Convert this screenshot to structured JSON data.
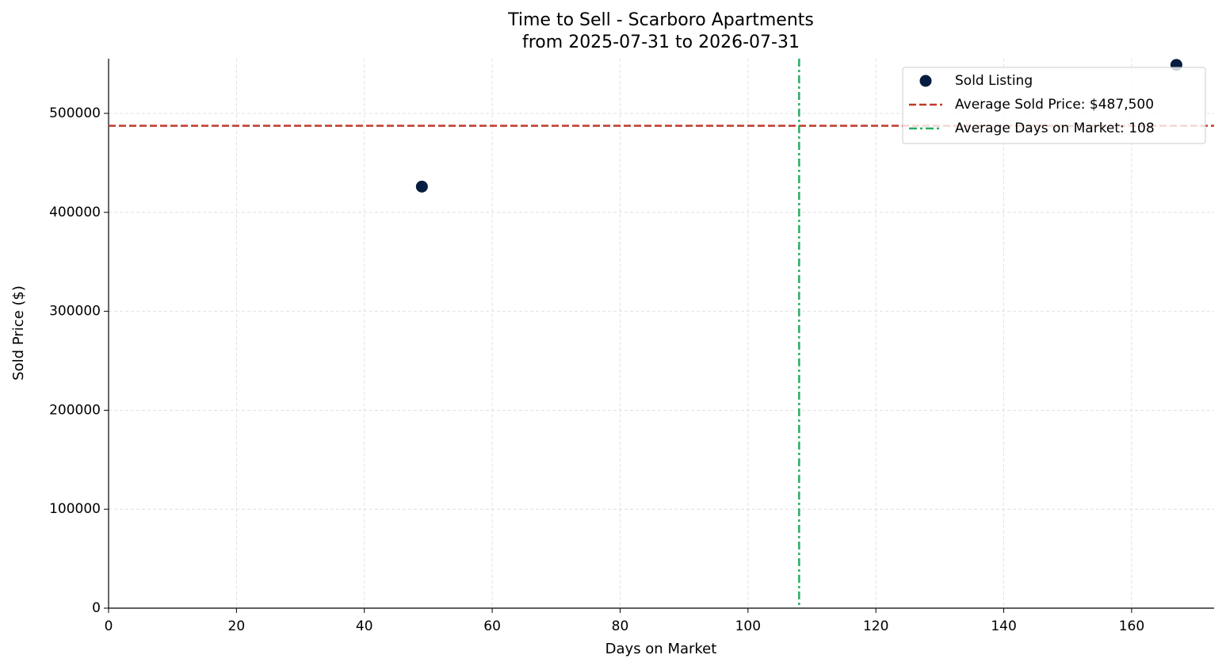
{
  "chart_data": {
    "type": "scatter",
    "title": "Time to Sell - Scarboro Apartments",
    "subtitle": "from 2025-07-31 to 2026-07-31",
    "xlabel": "Days on Market",
    "ylabel": "Sold Price ($)",
    "series": [
      {
        "name": "Sold Listing",
        "color": "#051d40",
        "x": [
          49,
          167
        ],
        "values": [
          426000,
          549000
        ]
      }
    ],
    "reference_lines": [
      {
        "name": "Average Sold Price: $487,500",
        "axis": "y",
        "value": 487500,
        "color": "#c0392b",
        "style": "dashed"
      },
      {
        "name": "Average Days on Market: 108",
        "axis": "x",
        "value": 108,
        "color": "#27ae60",
        "style": "dashdot"
      }
    ],
    "xlim": [
      0,
      172.9
    ],
    "ylim": [
      0,
      555300
    ],
    "xticks": [
      0,
      20,
      40,
      60,
      80,
      100,
      120,
      140,
      160
    ],
    "yticks": [
      0,
      100000,
      200000,
      300000,
      400000,
      500000
    ],
    "grid": true,
    "legend": "upper right"
  }
}
